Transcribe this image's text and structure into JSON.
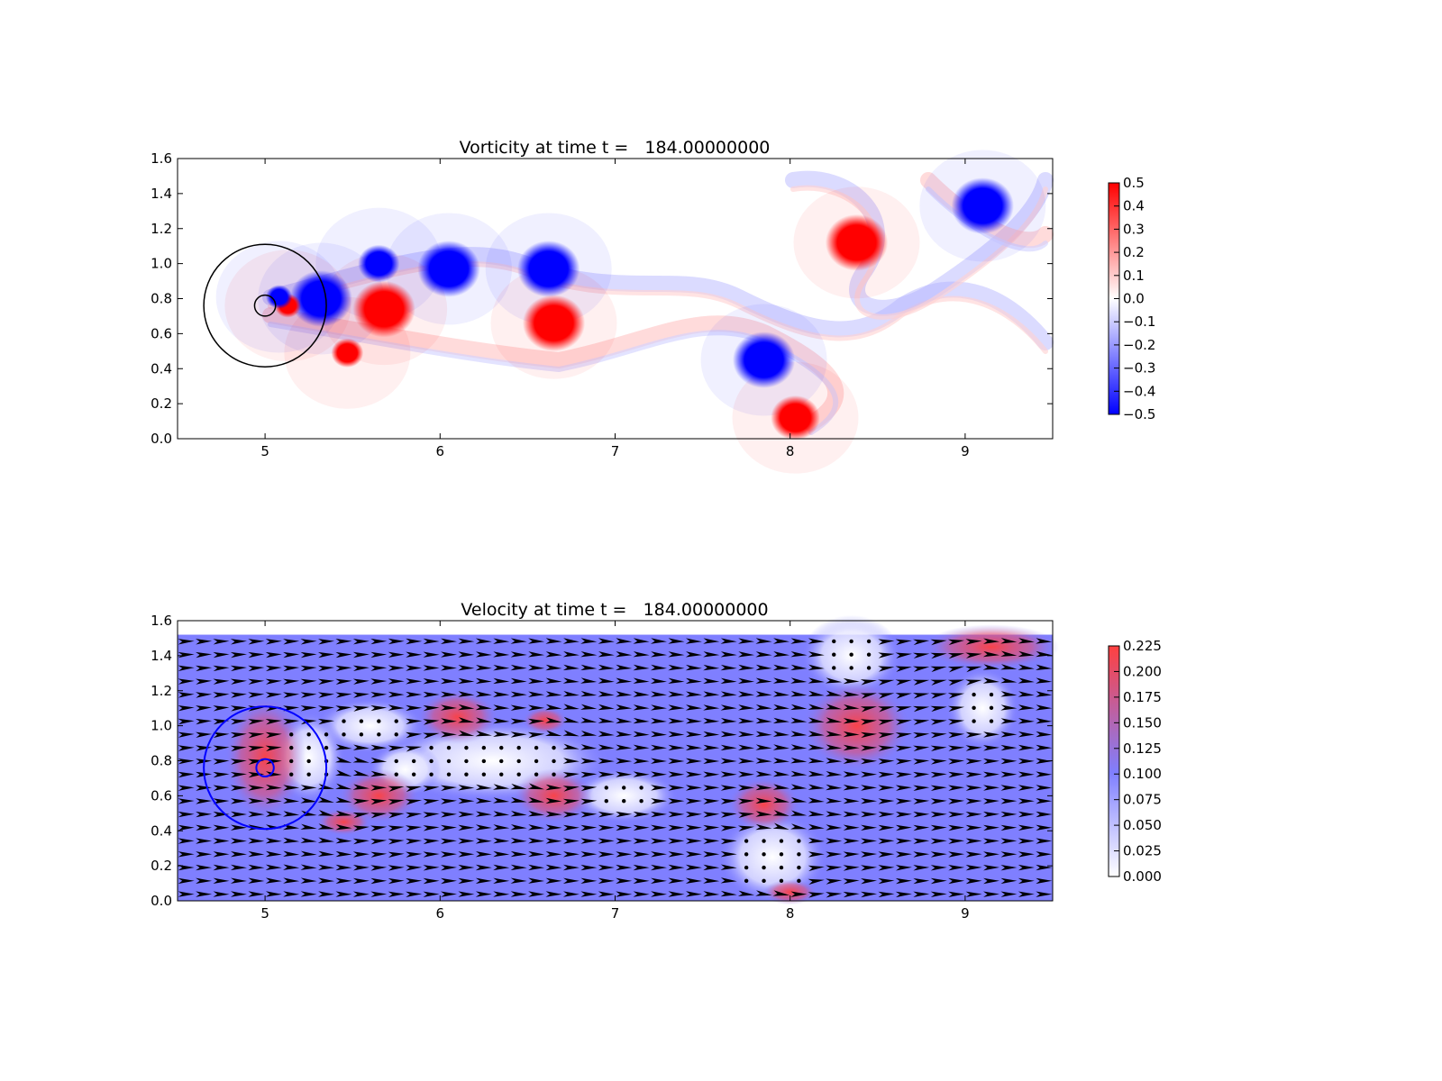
{
  "chart_data": [
    {
      "type": "heatmap",
      "title": "Vorticity at time t =   184.00000000",
      "xlabel": "",
      "ylabel": "",
      "xlim": [
        4.5,
        9.5
      ],
      "ylim": [
        0.0,
        1.6
      ],
      "xticks": [
        "5",
        "6",
        "7",
        "8",
        "9"
      ],
      "yticks": [
        "0.0",
        "0.2",
        "0.4",
        "0.6",
        "0.8",
        "1.0",
        "1.2",
        "1.4",
        "1.6"
      ],
      "colormap": "bwr",
      "colors": {
        "positive": "#ff0000",
        "zero": "#ffffff",
        "negative": "#0000ff",
        "contour": "#000000"
      },
      "colorbar": {
        "range": [
          -0.5,
          0.5
        ],
        "ticks": [
          "0.5",
          "0.4",
          "0.3",
          "0.2",
          "0.1",
          "0.0",
          "−0.1",
          "−0.2",
          "−0.3",
          "−0.4",
          "−0.5"
        ]
      },
      "vortices": [
        {
          "x": 9.1,
          "y": 1.33,
          "sign": -1
        },
        {
          "x": 8.38,
          "y": 1.12,
          "sign": 1
        },
        {
          "x": 6.05,
          "y": 0.97,
          "sign": -1
        },
        {
          "x": 6.62,
          "y": 0.97,
          "sign": -1
        },
        {
          "x": 5.65,
          "y": 1.0,
          "sign": -1
        },
        {
          "x": 5.68,
          "y": 0.74,
          "sign": 1
        },
        {
          "x": 6.65,
          "y": 0.66,
          "sign": 1
        },
        {
          "x": 5.32,
          "y": 0.8,
          "sign": -1
        },
        {
          "x": 5.47,
          "y": 0.49,
          "sign": 1
        },
        {
          "x": 7.85,
          "y": 0.45,
          "sign": -1
        },
        {
          "x": 8.03,
          "y": 0.12,
          "sign": 1
        },
        {
          "x": 5.13,
          "y": 0.76,
          "sign": 1
        },
        {
          "x": 5.08,
          "y": 0.81,
          "sign": -1
        }
      ],
      "circles": [
        {
          "x": 5.0,
          "y": 0.76,
          "r": 0.35
        },
        {
          "x": 5.0,
          "y": 0.76,
          "r": 0.06
        }
      ]
    },
    {
      "type": "heatmap",
      "title": "Velocity at time t =   184.00000000",
      "xlabel": "",
      "ylabel": "",
      "xlim": [
        4.5,
        9.5
      ],
      "ylim": [
        0.0,
        1.6
      ],
      "xticks": [
        "5",
        "6",
        "7",
        "8",
        "9"
      ],
      "yticks": [
        "0.0",
        "0.2",
        "0.4",
        "0.6",
        "0.8",
        "1.0",
        "1.2",
        "1.4",
        "1.6"
      ],
      "data_ylim": [
        0.0,
        1.52
      ],
      "colors": {
        "low": "#ffffff",
        "mid": "#7f7fff",
        "high": "#ff4040",
        "arrows": "#000000",
        "circle": "#0000ff"
      },
      "colorbar": {
        "range": [
          0.0,
          0.225
        ],
        "ticks": [
          "0.225",
          "0.200",
          "0.175",
          "0.150",
          "0.125",
          "0.100",
          "0.075",
          "0.050",
          "0.025",
          "0.000"
        ]
      },
      "background_speed": 0.1,
      "circles": [
        {
          "x": 5.0,
          "y": 0.76,
          "r": 0.35
        },
        {
          "x": 5.0,
          "y": 0.76,
          "r": 0.05
        }
      ]
    }
  ]
}
